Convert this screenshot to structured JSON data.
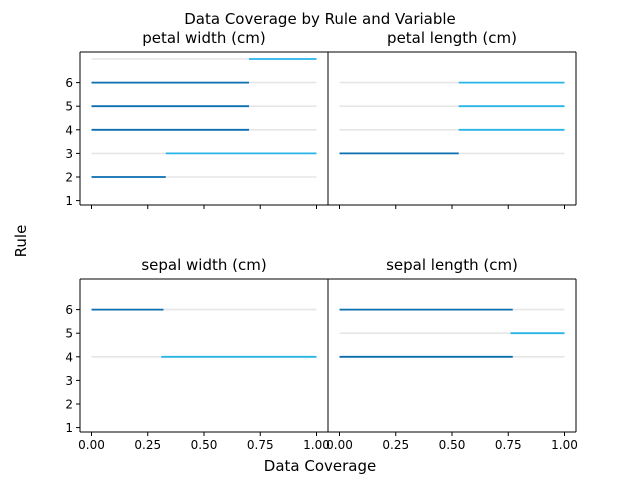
{
  "chart_data": {
    "type": "range",
    "title": "Data Coverage by Rule and Variable",
    "xlabel": "Data Coverage",
    "ylabel": "Rule",
    "xlim": [
      0,
      1
    ],
    "ylim": [
      1,
      7
    ],
    "x_ticks": [
      "0.00",
      "0.25",
      "0.50",
      "0.75",
      "1.00"
    ],
    "y_ticks": [
      "1",
      "2",
      "3",
      "4",
      "5",
      "6"
    ],
    "colors": {
      "background_track": "#e6e6e6",
      "lower_range": "#0a6eb0",
      "upper_range": "#29b5e8"
    },
    "panels": [
      {
        "title": "petal width (cm)",
        "tracks": [
          2,
          3,
          4,
          5,
          6,
          7
        ],
        "segments": [
          {
            "rule": 2,
            "start": 0.0,
            "end": 0.33,
            "color": "lower_range"
          },
          {
            "rule": 3,
            "start": 0.33,
            "end": 1.0,
            "color": "upper_range"
          },
          {
            "rule": 4,
            "start": 0.0,
            "end": 0.7,
            "color": "lower_range"
          },
          {
            "rule": 5,
            "start": 0.0,
            "end": 0.7,
            "color": "lower_range"
          },
          {
            "rule": 6,
            "start": 0.0,
            "end": 0.7,
            "color": "lower_range"
          },
          {
            "rule": 7,
            "start": 0.7,
            "end": 1.0,
            "color": "upper_range"
          }
        ]
      },
      {
        "title": "petal length (cm)",
        "tracks": [
          3,
          4,
          5,
          6
        ],
        "segments": [
          {
            "rule": 3,
            "start": 0.0,
            "end": 0.53,
            "color": "lower_range"
          },
          {
            "rule": 4,
            "start": 0.53,
            "end": 1.0,
            "color": "upper_range"
          },
          {
            "rule": 5,
            "start": 0.53,
            "end": 1.0,
            "color": "upper_range"
          },
          {
            "rule": 6,
            "start": 0.53,
            "end": 1.0,
            "color": "upper_range"
          }
        ]
      },
      {
        "title": "sepal width (cm)",
        "tracks": [
          4,
          6
        ],
        "segments": [
          {
            "rule": 4,
            "start": 0.31,
            "end": 1.0,
            "color": "upper_range"
          },
          {
            "rule": 6,
            "start": 0.0,
            "end": 0.32,
            "color": "lower_range"
          }
        ]
      },
      {
        "title": "sepal length (cm)",
        "tracks": [
          4,
          5,
          6
        ],
        "segments": [
          {
            "rule": 4,
            "start": 0.0,
            "end": 0.77,
            "color": "lower_range"
          },
          {
            "rule": 5,
            "start": 0.76,
            "end": 1.0,
            "color": "upper_range"
          },
          {
            "rule": 6,
            "start": 0.0,
            "end": 0.77,
            "color": "lower_range"
          }
        ]
      }
    ]
  }
}
